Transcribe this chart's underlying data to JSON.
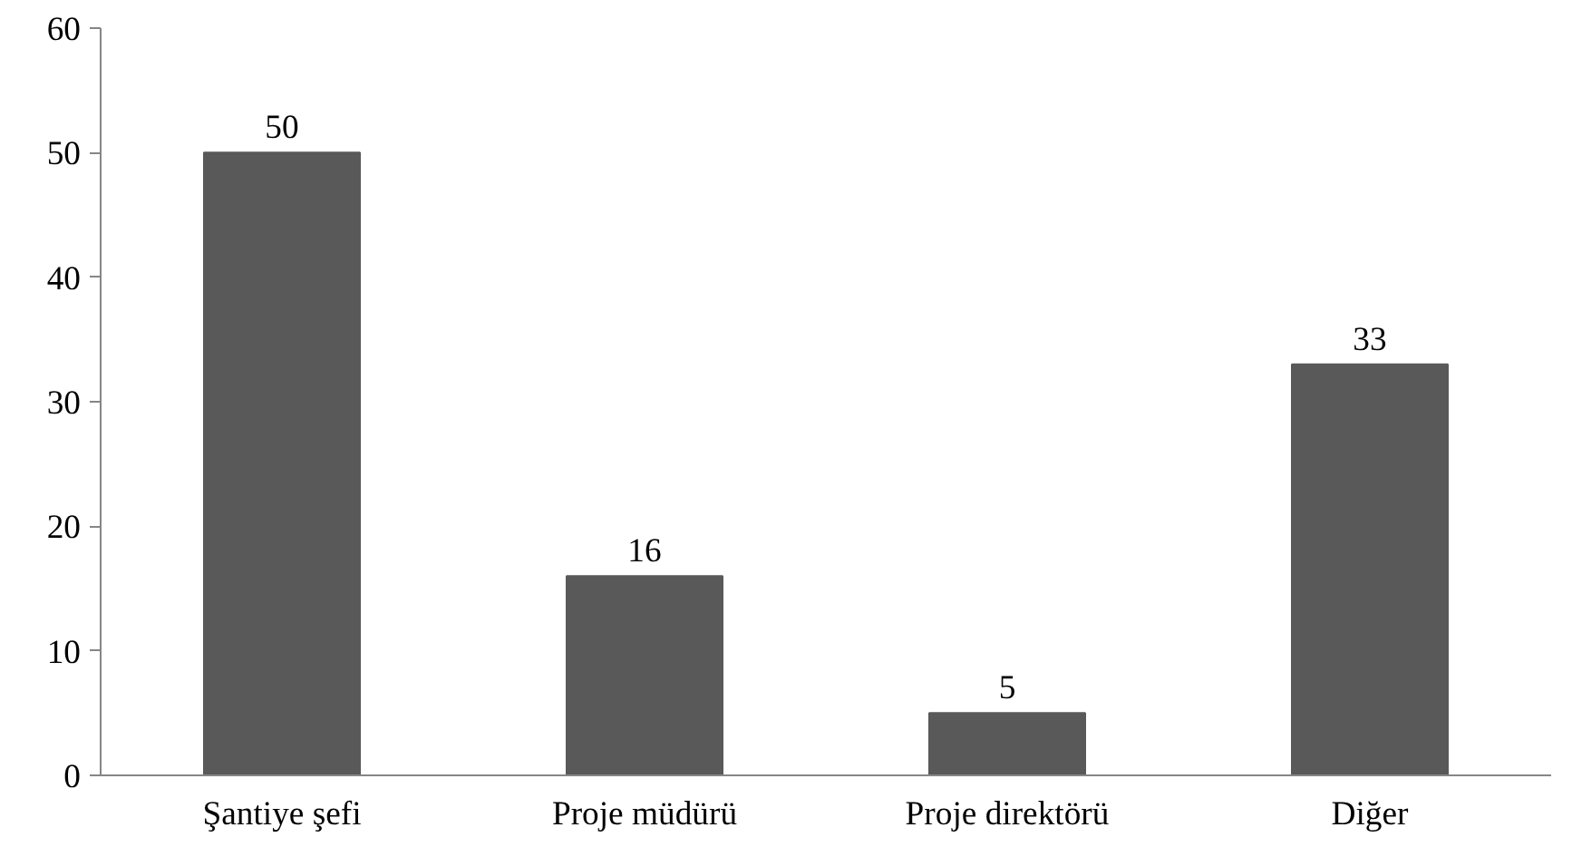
{
  "chart_data": {
    "type": "bar",
    "categories": [
      "Şantiye şefi",
      "Proje müdürü",
      "Proje direktörü",
      "Diğer"
    ],
    "values": [
      50,
      16,
      5,
      33
    ],
    "color": "#595959",
    "ylim": [
      0,
      60
    ],
    "yticks": [
      0,
      10,
      20,
      30,
      40,
      50,
      60
    ],
    "grid": false,
    "data_labels": true
  }
}
